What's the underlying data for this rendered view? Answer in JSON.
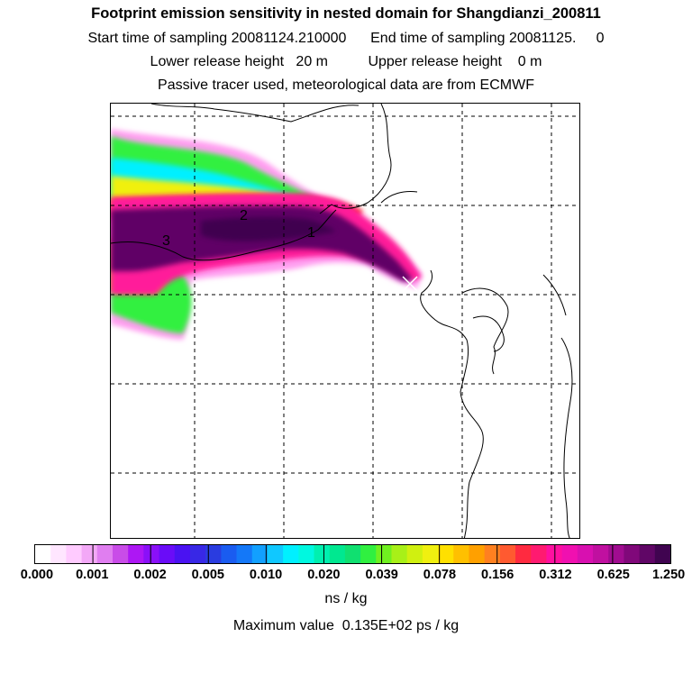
{
  "header": {
    "title": "Footprint emission sensitivity in nested domain for Shangdianzi_200811",
    "sampling_line": "Start time of sampling 20081124.210000      End time of sampling 20081125.     0",
    "release_line": "Lower release height   20 m          Upper release height    0 m",
    "tracer_line": "Passive tracer used, meteorological data are from ECMWF"
  },
  "map": {
    "contour_labels": [
      "1",
      "2",
      "3"
    ],
    "receptor_marker": "receptor-cross"
  },
  "legend": {
    "tick_labels": [
      "0.000",
      "0.001",
      "0.002",
      "0.005",
      "0.010",
      "0.020",
      "0.039",
      "0.078",
      "0.156",
      "0.312",
      "0.625",
      "1.250"
    ],
    "colors": [
      "#ffffff",
      "#ffe6ff",
      "#ffcbff",
      "#f3a8f7",
      "#e07ef0",
      "#c94ce8",
      "#ad17f4",
      "#8a10f8",
      "#6a0cf8",
      "#4a12f2",
      "#3828e6",
      "#2a3ce0",
      "#1a5cf0",
      "#1478f8",
      "#12a0ff",
      "#10c8ff",
      "#00f0ff",
      "#00f8e0",
      "#00f0b0",
      "#00e890",
      "#10e070",
      "#30f040",
      "#70f020",
      "#a8f018",
      "#d0f010",
      "#f0f010",
      "#ffe000",
      "#ffc000",
      "#ffa000",
      "#ff8020",
      "#ff5a30",
      "#ff2a40",
      "#ff1a70",
      "#ff10a0",
      "#f010b0",
      "#d810b0",
      "#c010a0",
      "#a00c90",
      "#80087a",
      "#600666",
      "#400450"
    ],
    "units": "ns / kg",
    "max_value": "Maximum value  0.135E+02 ps / kg"
  }
}
